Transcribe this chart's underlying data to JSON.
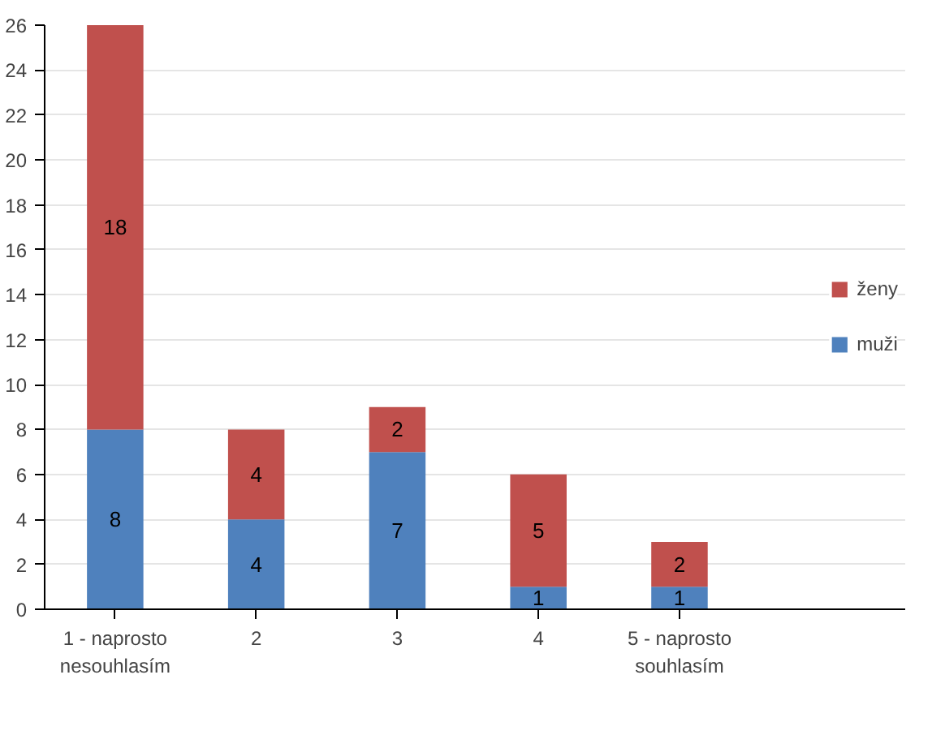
{
  "chart_data": {
    "type": "bar",
    "stacked": true,
    "categories": [
      "1 - naprosto\nnesouhlasím",
      "2",
      "3",
      "4",
      "5 - naprosto\nsouhlasím"
    ],
    "series": [
      {
        "name": "muži",
        "color": "#4f81bd",
        "values": [
          8,
          4,
          7,
          1,
          1
        ]
      },
      {
        "name": "ženy",
        "color": "#c0504d",
        "values": [
          18,
          4,
          2,
          5,
          2
        ]
      }
    ],
    "ylim": [
      0,
      26
    ],
    "yticks": [
      0,
      2,
      4,
      6,
      8,
      10,
      12,
      14,
      16,
      18,
      20,
      22,
      24,
      26
    ],
    "grid": "y",
    "legend": "right",
    "data_labels": true
  }
}
